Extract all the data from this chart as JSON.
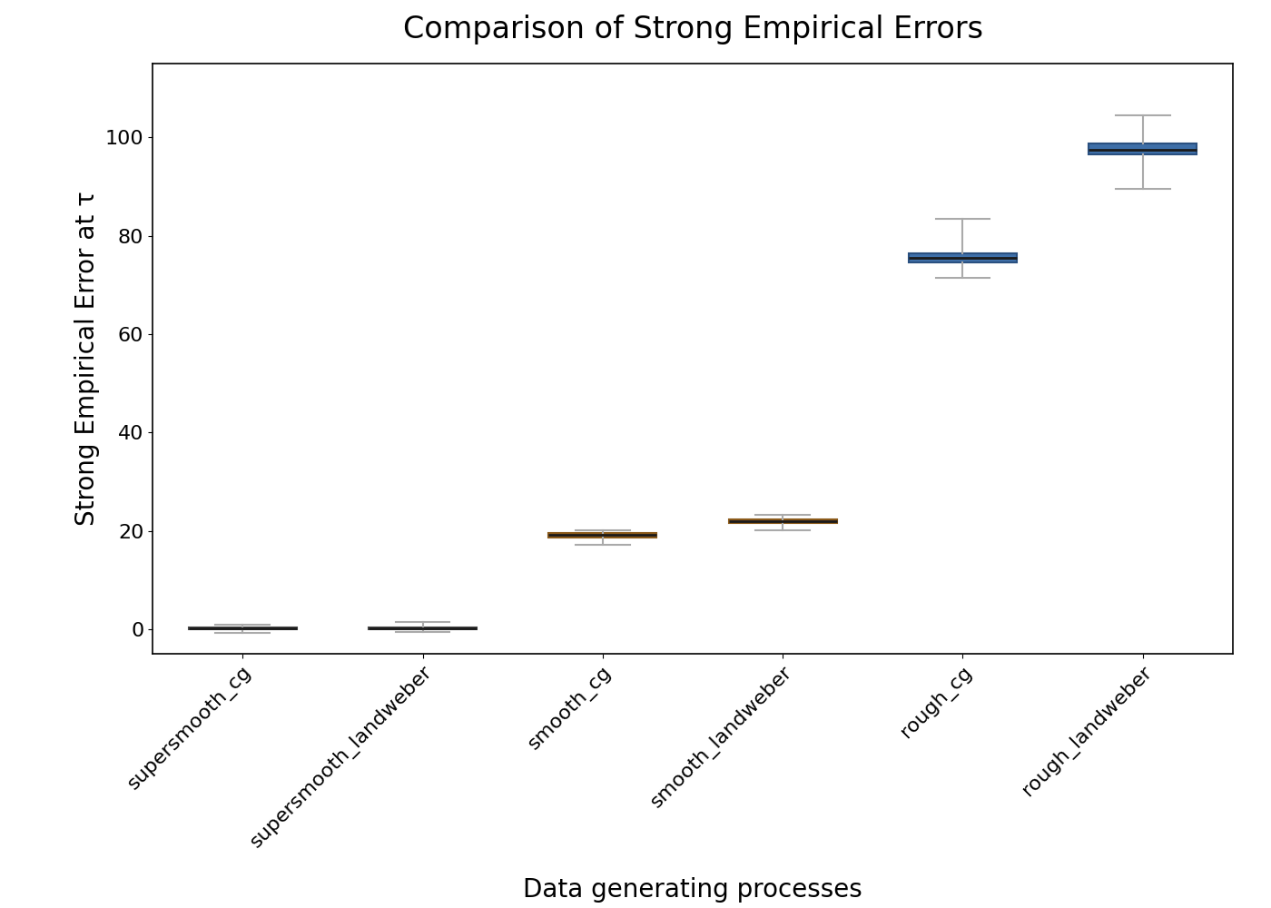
{
  "title": "Comparison of Strong Empirical Errors",
  "xlabel": "Data generating processes",
  "ylabel": "Strong Empirical Error at τ",
  "categories": [
    "supersmooth_cg",
    "supersmooth_landweber",
    "smooth_cg",
    "smooth_landweber",
    "rough_cg",
    "rough_landweber"
  ],
  "box_data": [
    {
      "whislo": -0.8,
      "q1": 0.05,
      "med": 0.2,
      "q3": 0.4,
      "whishi": 0.9
    },
    {
      "whislo": -0.6,
      "q1": 0.05,
      "med": 0.2,
      "q3": 0.4,
      "whishi": 1.4
    },
    {
      "whislo": 17.2,
      "q1": 18.6,
      "med": 19.1,
      "q3": 19.6,
      "whishi": 20.1
    },
    {
      "whislo": 20.2,
      "q1": 21.5,
      "med": 22.0,
      "q3": 22.4,
      "whishi": 23.2
    },
    {
      "whislo": 71.5,
      "q1": 74.5,
      "med": 75.5,
      "q3": 76.5,
      "whishi": 83.5
    },
    {
      "whislo": 89.5,
      "q1": 96.5,
      "med": 97.5,
      "q3": 98.8,
      "whishi": 104.5
    }
  ],
  "box_facecolors": [
    "#6d6d6d",
    "#6d6d6d",
    "#c8762b",
    "#c8762b",
    "#3e6fa8",
    "#3e6fa8"
  ],
  "box_edgecolors": [
    "#4a4a4a",
    "#4a4a4a",
    "#8b5a1a",
    "#8b5a1a",
    "#2a5080",
    "#2a5080"
  ],
  "whisker_color": "#aaaaaa",
  "median_color": "#1a1a1a",
  "ylim": [
    -5,
    115
  ],
  "yticks": [
    0,
    20,
    40,
    60,
    80,
    100
  ],
  "title_fontsize": 24,
  "label_fontsize": 20,
  "tick_fontsize": 16,
  "box_width": 0.6,
  "background_color": "#ffffff",
  "figsize": [
    14,
    10
  ]
}
